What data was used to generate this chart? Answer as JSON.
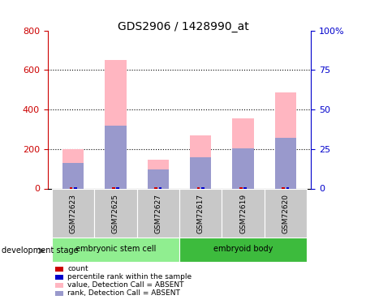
{
  "title": "GDS2906 / 1428990_at",
  "samples": [
    "GSM72623",
    "GSM72625",
    "GSM72627",
    "GSM72617",
    "GSM72619",
    "GSM72620"
  ],
  "group_labels": [
    "embryonic stem cell",
    "embryoid body"
  ],
  "pink_values": [
    200,
    650,
    145,
    270,
    355,
    485
  ],
  "blue_values": [
    130,
    320,
    95,
    160,
    205,
    255
  ],
  "ylim_left": [
    0,
    800
  ],
  "ylim_right": [
    0,
    100
  ],
  "yticks_left": [
    0,
    200,
    400,
    600,
    800
  ],
  "yticks_right": [
    0,
    25,
    50,
    75,
    100
  ],
  "yticklabels_right": [
    "0",
    "25",
    "50",
    "75",
    "100%"
  ],
  "bar_width": 0.5,
  "pink_color": "#ffb6c1",
  "blue_color": "#9999cc",
  "red_color": "#cc0000",
  "dark_blue_color": "#0000cc",
  "label_color_left": "#cc0000",
  "label_color_right": "#0000cc",
  "development_stage_label": "development stage",
  "legend_items": [
    {
      "label": "count",
      "color": "#cc0000"
    },
    {
      "label": "percentile rank within the sample",
      "color": "#0000cc"
    },
    {
      "label": "value, Detection Call = ABSENT",
      "color": "#ffb6c1"
    },
    {
      "label": "rank, Detection Call = ABSENT",
      "color": "#9999cc"
    }
  ]
}
